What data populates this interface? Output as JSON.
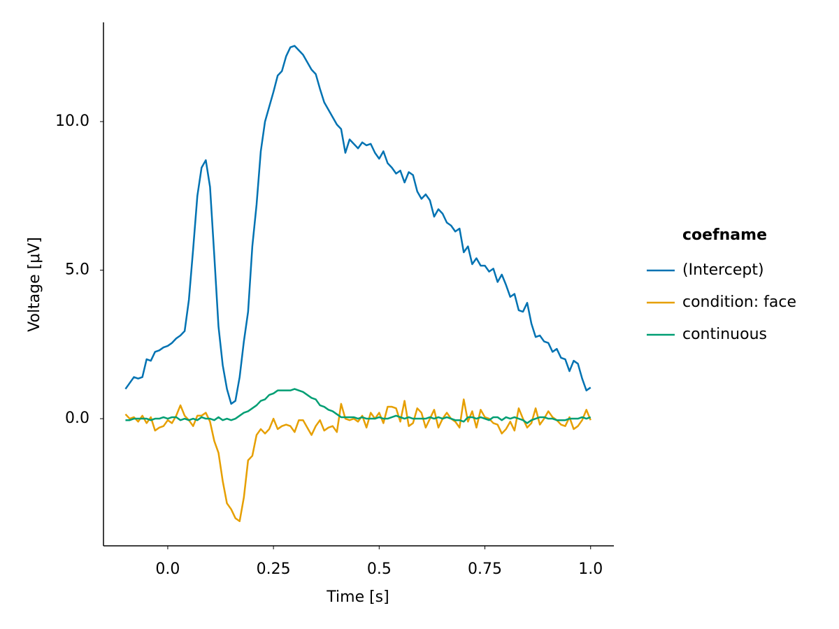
{
  "chart_data": {
    "type": "line",
    "xlabel": "Time [s]",
    "ylabel": "Voltage [μV]",
    "legend_title": "coefname",
    "legend": "right",
    "grid": false,
    "xlim": [
      -0.152,
      1.055
    ],
    "ylim": [
      -4.28,
      13.34
    ],
    "xticks": [
      {
        "value": 0,
        "label": "0.0"
      },
      0.25,
      0.5,
      0.75,
      {
        "value": 1,
        "label": "1.0"
      }
    ],
    "yticks": [
      {
        "value": 0,
        "label": "0.0"
      },
      {
        "value": 5,
        "label": "5.0"
      },
      {
        "value": 10,
        "label": "10.0"
      }
    ],
    "x": [
      -0.1,
      -0.09,
      -0.08,
      -0.07,
      -0.06,
      -0.05,
      -0.04,
      -0.03,
      -0.02,
      -0.01,
      0,
      0.01,
      0.02,
      0.03,
      0.04,
      0.05,
      0.06,
      0.07,
      0.08,
      0.09,
      0.1,
      0.11,
      0.12,
      0.13,
      0.14,
      0.15,
      0.16,
      0.17,
      0.18,
      0.19,
      0.2,
      0.21,
      0.22,
      0.23,
      0.24,
      0.25,
      0.26,
      0.27,
      0.28,
      0.29,
      0.3,
      0.31,
      0.32,
      0.33,
      0.34,
      0.35,
      0.36,
      0.37,
      0.38,
      0.39,
      0.4,
      0.41,
      0.42,
      0.43,
      0.44,
      0.45,
      0.46,
      0.47,
      0.48,
      0.49,
      0.5,
      0.51,
      0.52,
      0.53,
      0.54,
      0.55,
      0.56,
      0.57,
      0.58,
      0.59,
      0.6,
      0.61,
      0.62,
      0.63,
      0.64,
      0.65,
      0.66,
      0.67,
      0.68,
      0.69,
      0.7,
      0.71,
      0.72,
      0.73,
      0.74,
      0.75,
      0.76,
      0.77,
      0.78,
      0.79,
      0.8,
      0.81,
      0.82,
      0.83,
      0.84,
      0.85,
      0.86,
      0.87,
      0.88,
      0.89,
      0.9,
      0.91,
      0.92,
      0.93,
      0.94,
      0.95,
      0.96,
      0.97,
      0.98,
      0.99,
      1.0
    ],
    "series": [
      {
        "name": "(Intercept)",
        "color": "#0072b2",
        "values": [
          1.0,
          1.2,
          1.4,
          1.35,
          1.4,
          2.0,
          1.95,
          2.25,
          2.3,
          2.4,
          2.45,
          2.55,
          2.7,
          2.8,
          2.95,
          4.0,
          5.7,
          7.5,
          8.45,
          8.7,
          7.8,
          5.5,
          3.1,
          1.8,
          1.0,
          0.5,
          0.6,
          1.4,
          2.6,
          3.6,
          5.8,
          7.2,
          9.0,
          10.0,
          10.5,
          11.0,
          11.55,
          11.7,
          12.2,
          12.5,
          12.55,
          12.4,
          12.25,
          12.0,
          11.75,
          11.6,
          11.1,
          10.65,
          10.4,
          10.15,
          9.9,
          9.75,
          8.95,
          9.4,
          9.25,
          9.1,
          9.3,
          9.2,
          9.25,
          8.95,
          8.75,
          9.0,
          8.6,
          8.45,
          8.25,
          8.35,
          7.95,
          8.3,
          8.2,
          7.65,
          7.4,
          7.55,
          7.35,
          6.8,
          7.05,
          6.9,
          6.6,
          6.5,
          6.3,
          6.4,
          5.6,
          5.8,
          5.2,
          5.4,
          5.15,
          5.15,
          4.95,
          5.05,
          4.6,
          4.85,
          4.5,
          4.1,
          4.2,
          3.65,
          3.6,
          3.9,
          3.2,
          2.75,
          2.8,
          2.6,
          2.55,
          2.25,
          2.35,
          2.05,
          2.0,
          1.6,
          1.95,
          1.85,
          1.35,
          0.95,
          1.05
        ]
      },
      {
        "name": "condition: face",
        "color": "#e69f00",
        "values": [
          0.15,
          0.0,
          0.05,
          -0.1,
          0.1,
          -0.15,
          0.05,
          -0.4,
          -0.3,
          -0.25,
          -0.05,
          -0.15,
          0.1,
          0.45,
          0.1,
          -0.05,
          -0.25,
          0.1,
          0.1,
          0.2,
          -0.1,
          -0.75,
          -1.15,
          -2.1,
          -2.85,
          -3.05,
          -3.35,
          -3.45,
          -2.65,
          -1.4,
          -1.25,
          -0.55,
          -0.35,
          -0.5,
          -0.35,
          0.0,
          -0.35,
          -0.25,
          -0.2,
          -0.25,
          -0.45,
          -0.05,
          -0.05,
          -0.3,
          -0.55,
          -0.25,
          -0.05,
          -0.4,
          -0.3,
          -0.25,
          -0.45,
          0.5,
          0.0,
          -0.05,
          0.0,
          -0.1,
          0.1,
          -0.3,
          0.2,
          0.0,
          0.2,
          -0.15,
          0.4,
          0.4,
          0.35,
          -0.1,
          0.6,
          -0.25,
          -0.15,
          0.35,
          0.2,
          -0.3,
          0.0,
          0.3,
          -0.3,
          0.0,
          0.2,
          0.0,
          -0.1,
          -0.3,
          0.65,
          -0.1,
          0.25,
          -0.3,
          0.3,
          0.05,
          0.0,
          -0.15,
          -0.2,
          -0.5,
          -0.35,
          -0.1,
          -0.4,
          0.35,
          0.0,
          -0.3,
          -0.15,
          0.35,
          -0.2,
          0.0,
          0.25,
          0.05,
          -0.05,
          -0.2,
          -0.25,
          0.05,
          -0.35,
          -0.25,
          -0.05,
          0.3,
          -0.05
        ]
      },
      {
        "name": "continuous",
        "color": "#009e73",
        "values": [
          -0.05,
          -0.05,
          0.0,
          0.0,
          0.0,
          0.0,
          -0.05,
          0.0,
          0.0,
          0.05,
          0.0,
          0.05,
          0.05,
          -0.05,
          0.0,
          -0.05,
          0.0,
          -0.05,
          0.05,
          0.0,
          0.0,
          -0.05,
          0.05,
          -0.05,
          0.0,
          -0.05,
          0.0,
          0.1,
          0.2,
          0.25,
          0.35,
          0.45,
          0.6,
          0.65,
          0.8,
          0.85,
          0.95,
          0.95,
          0.95,
          0.95,
          1.0,
          0.95,
          0.9,
          0.8,
          0.7,
          0.65,
          0.45,
          0.4,
          0.3,
          0.25,
          0.15,
          0.05,
          0.05,
          0.05,
          0.05,
          0.0,
          0.05,
          0.0,
          0.0,
          0.0,
          0.05,
          0.0,
          0.0,
          0.05,
          0.1,
          0.05,
          0.0,
          0.05,
          0.0,
          0.0,
          0.0,
          0.0,
          0.05,
          0.0,
          0.05,
          0.0,
          0.05,
          0.0,
          -0.05,
          -0.05,
          -0.1,
          0.05,
          0.05,
          0.0,
          0.05,
          0.0,
          -0.05,
          0.05,
          0.05,
          -0.05,
          0.05,
          0.0,
          0.05,
          0.0,
          -0.05,
          -0.15,
          -0.05,
          0.0,
          0.05,
          0.05,
          0.0,
          0.0,
          -0.05,
          -0.05,
          -0.05,
          0.0,
          0.0,
          0.0,
          0.05,
          0.0,
          0.05
        ]
      }
    ]
  }
}
